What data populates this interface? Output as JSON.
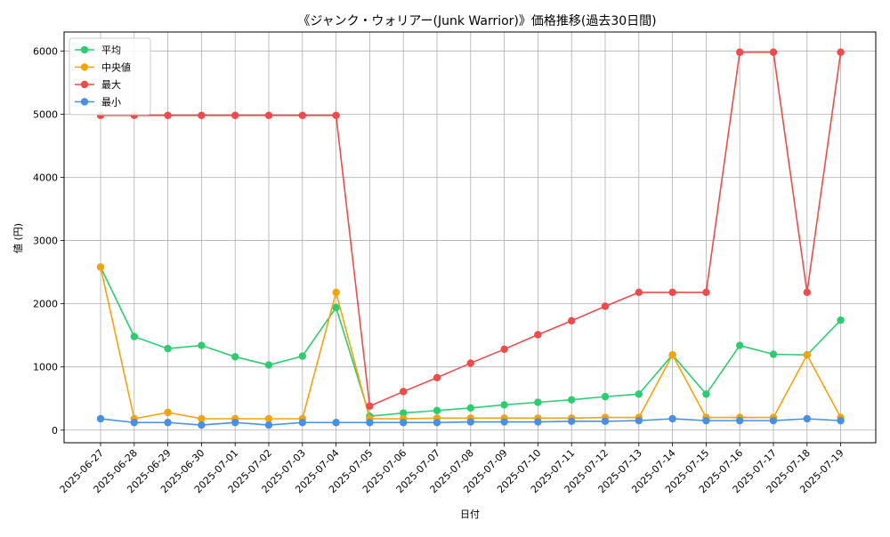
{
  "chart_data": {
    "type": "line",
    "title": "《ジャンク・ウォリアー(Junk Warrior)》価格推移(過去30日間)",
    "xlabel": "日付",
    "ylabel": "値 (円)",
    "ylim": [
      -200,
      6300
    ],
    "yticks": [
      0,
      1000,
      2000,
      3000,
      4000,
      5000,
      6000
    ],
    "grid": true,
    "legend_position": "top-left",
    "categories": [
      "2025-06-27",
      "2025-06-28",
      "2025-06-29",
      "2025-06-30",
      "2025-07-01",
      "2025-07-02",
      "2025-07-03",
      "2025-07-04",
      "2025-07-05",
      "2025-07-06",
      "2025-07-07",
      "2025-07-08",
      "2025-07-09",
      "2025-07-10",
      "2025-07-11",
      "2025-07-12",
      "2025-07-13",
      "2025-07-14",
      "2025-07-15",
      "2025-07-16",
      "2025-07-17",
      "2025-07-18",
      "2025-07-19"
    ],
    "series": [
      {
        "name": "平均",
        "color": "#2ecc71",
        "values": [
          2580,
          1480,
          1290,
          1340,
          1160,
          1030,
          1170,
          1940,
          220,
          270,
          310,
          350,
          400,
          440,
          480,
          530,
          570,
          1190,
          570,
          1340,
          1200,
          1190,
          1740
        ]
      },
      {
        "name": "中央値",
        "color": "#f5a30a",
        "values": [
          2580,
          180,
          280,
          180,
          180,
          180,
          180,
          2180,
          180,
          180,
          190,
          190,
          190,
          190,
          190,
          200,
          200,
          1190,
          200,
          200,
          200,
          1190,
          200
        ]
      },
      {
        "name": "最大",
        "color": "#ef4b4b",
        "values": [
          4980,
          4980,
          4980,
          4980,
          4980,
          4980,
          4980,
          4980,
          380,
          610,
          830,
          1060,
          1280,
          1510,
          1730,
          1960,
          2180,
          2180,
          2180,
          5980,
          5980,
          2180,
          5980
        ]
      },
      {
        "name": "最小",
        "color": "#4a90e2",
        "values": [
          180,
          120,
          120,
          80,
          120,
          80,
          120,
          120,
          120,
          120,
          120,
          130,
          130,
          130,
          140,
          140,
          150,
          180,
          150,
          150,
          150,
          180,
          150
        ]
      }
    ]
  }
}
